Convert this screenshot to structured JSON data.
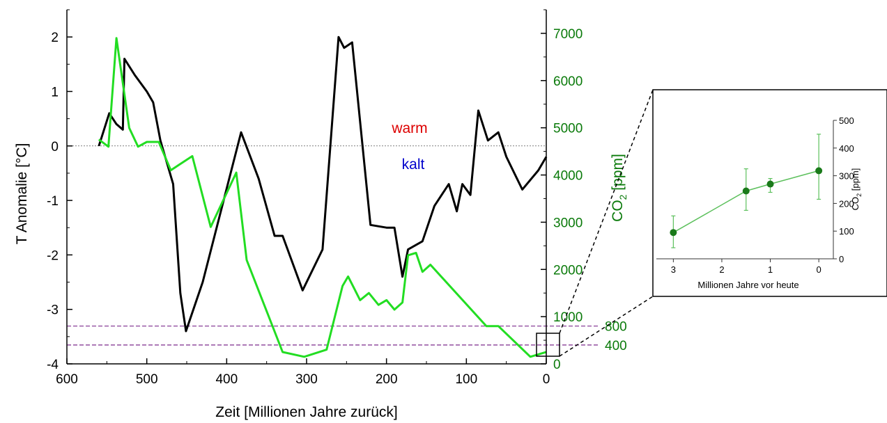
{
  "chart_data": [
    {
      "type": "line",
      "xlabel": "Zeit [Millionen Jahre zurück]",
      "ylabel": "T Anomalie [°C]",
      "y2label_main": "CO",
      "y2label_sub": "2",
      "y2label_rest": " [ppm]",
      "xlim": [
        600,
        0
      ],
      "ylim": [
        -4,
        2.5
      ],
      "y2lim": [
        0,
        7500
      ],
      "x_ticks": [
        600,
        500,
        400,
        300,
        200,
        100,
        0
      ],
      "y_ticks": [
        -4,
        -3,
        -2,
        -1,
        0,
        1,
        2
      ],
      "y2_ticks": [
        0,
        1000,
        2000,
        3000,
        4000,
        5000,
        6000,
        7000
      ],
      "annotations": {
        "warm": "warm",
        "kalt": "kalt"
      },
      "reference_lines": [
        {
          "label": "800",
          "co2": 800,
          "color": "#7b2a8c"
        },
        {
          "label": "400",
          "co2": 400,
          "color": "#7b2a8c"
        }
      ],
      "zero_line": 0,
      "colors": {
        "temperature": "#000000",
        "co2": "#22dd22",
        "co2_axis": "#0a7a0a",
        "warm": "#dd0000",
        "kalt": "#0000cc"
      },
      "series": [
        {
          "key": "temperature",
          "axis": "left",
          "x": [
            560,
            547,
            538,
            530,
            528,
            515,
            500,
            492,
            483,
            467,
            458,
            451,
            430,
            382,
            360,
            340,
            330,
            305,
            280,
            260,
            253,
            243,
            220,
            200,
            190,
            180,
            173,
            155,
            140,
            122,
            112,
            105,
            95,
            85,
            73,
            60,
            50,
            30,
            10,
            0
          ],
          "y": [
            0.0,
            0.6,
            0.4,
            0.3,
            1.6,
            1.3,
            1.0,
            0.8,
            0.1,
            -0.7,
            -2.7,
            -3.4,
            -2.5,
            0.25,
            -0.6,
            -1.65,
            -1.65,
            -2.65,
            -1.9,
            2.0,
            1.8,
            1.9,
            -1.45,
            -1.5,
            -1.5,
            -2.4,
            -1.9,
            -1.75,
            -1.1,
            -0.7,
            -1.2,
            -0.7,
            -0.9,
            0.65,
            0.1,
            0.25,
            -0.2,
            -0.8,
            -0.45,
            -0.2
          ]
        },
        {
          "key": "co2",
          "axis": "right",
          "x": [
            560,
            548,
            538,
            522,
            511,
            500,
            485,
            470,
            443,
            420,
            388,
            375,
            330,
            303,
            275,
            255,
            248,
            233,
            222,
            210,
            200,
            190,
            180,
            173,
            163,
            155,
            145,
            75,
            60,
            20,
            0
          ],
          "y": [
            4750,
            4600,
            6900,
            5000,
            4600,
            4700,
            4700,
            4100,
            4400,
            2900,
            4050,
            2200,
            250,
            150,
            300,
            1650,
            1850,
            1350,
            1500,
            1250,
            1350,
            1150,
            1300,
            2300,
            2350,
            1950,
            2100,
            800,
            800,
            150,
            250
          ]
        }
      ]
    },
    {
      "type": "line",
      "xlabel": "Millionen Jahre vor heute",
      "ylabel_main": "CO",
      "ylabel_sub": "2",
      "ylabel_rest": " [ppm]",
      "xlim": [
        3.35,
        -0.3
      ],
      "ylim": [
        0,
        500
      ],
      "x_ticks": [
        3,
        2,
        1,
        0
      ],
      "y_ticks": [
        0,
        100,
        200,
        300,
        400,
        500
      ],
      "colors": {
        "line": "#5cc05c",
        "point": "#1a7a1a",
        "axis": "#333333"
      },
      "series": [
        {
          "key": "co2-inset",
          "x": [
            3.0,
            1.5,
            1.0,
            0.0
          ],
          "y": [
            95,
            245,
            270,
            318
          ],
          "err_low": [
            40,
            175,
            240,
            215
          ],
          "err_high": [
            155,
            325,
            290,
            450
          ]
        }
      ]
    }
  ]
}
